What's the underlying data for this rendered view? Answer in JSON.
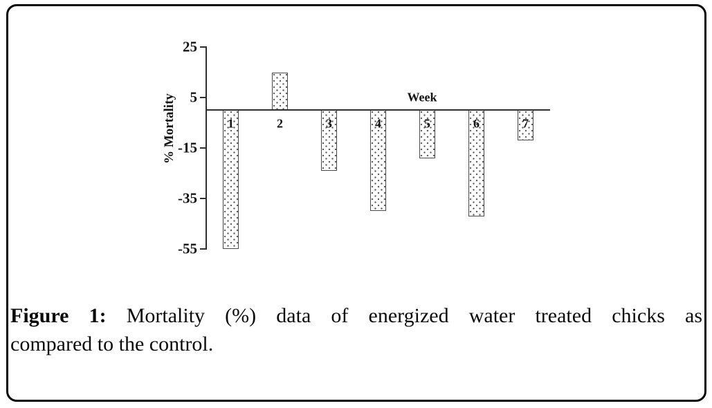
{
  "figure": {
    "caption_label": "Figure 1:",
    "caption_line1": "Mortality (%) data of energized water treated chicks as",
    "caption_line2": "compared to the control."
  },
  "chart_data": {
    "type": "bar",
    "title": "",
    "xlabel": "Week",
    "ylabel": "% Mortality",
    "categories": [
      "1",
      "2",
      "3",
      "4",
      "5",
      "6",
      "7"
    ],
    "values": [
      -55,
      15,
      -24,
      -40,
      -19,
      -42,
      -12
    ],
    "yticks": [
      25,
      5,
      -15,
      -35,
      -55
    ],
    "ylim": [
      -55,
      25
    ],
    "grid": false,
    "legend": "none",
    "bar_fill": "#ffffff",
    "bar_pattern": "dotted",
    "bar_border_color": "#4a4a4a",
    "axis_color": "#2e2e2e",
    "text_color": "#141414",
    "frame_color": "#050505"
  }
}
